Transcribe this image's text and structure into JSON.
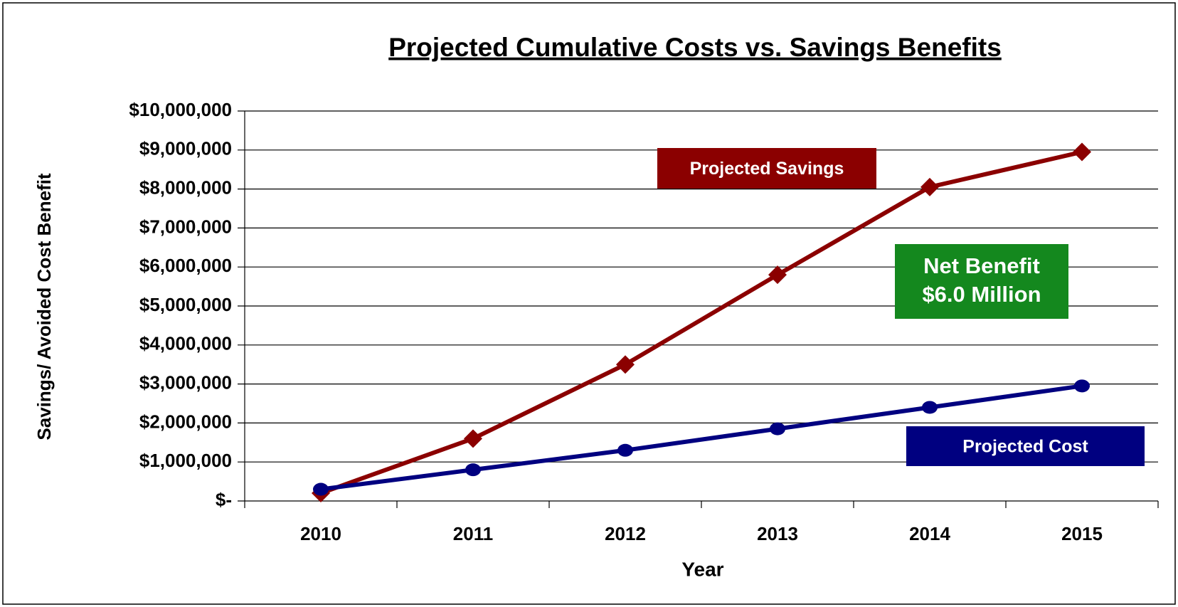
{
  "chart_data": {
    "type": "line",
    "title": "Projected Cumulative Costs vs. Savings Benefits",
    "x_label": "Year",
    "y_label": "Savings/ Avoided Cost Benefit",
    "categories": [
      "2010",
      "2011",
      "2012",
      "2013",
      "2014",
      "2015"
    ],
    "series": [
      {
        "name": "Projected Savings",
        "color": "#8b0000",
        "marker": "diamond",
        "values": [
          200000,
          1600000,
          3500000,
          5800000,
          8050000,
          8950000
        ]
      },
      {
        "name": "Projected Cost",
        "color": "#000080",
        "marker": "circle",
        "values": [
          300000,
          800000,
          1300000,
          1850000,
          2400000,
          2950000
        ]
      }
    ],
    "annotations": [
      {
        "lines": [
          "Net Benefit",
          "$6.0 Million"
        ],
        "color": "#14881e"
      }
    ],
    "ylim": [
      0,
      10000000
    ],
    "yticks": [
      {
        "value": 0,
        "label": "$-"
      },
      {
        "value": 1000000,
        "label": "$1,000,000"
      },
      {
        "value": 2000000,
        "label": "$2,000,000"
      },
      {
        "value": 3000000,
        "label": "$3,000,000"
      },
      {
        "value": 4000000,
        "label": "$4,000,000"
      },
      {
        "value": 5000000,
        "label": "$5,000,000"
      },
      {
        "value": 6000000,
        "label": "$6,000,000"
      },
      {
        "value": 7000000,
        "label": "$7,000,000"
      },
      {
        "value": 8000000,
        "label": "$8,000,000"
      },
      {
        "value": 9000000,
        "label": "$9,000,000"
      },
      {
        "value": 10000000,
        "label": "$10,000,000"
      }
    ],
    "grid": true
  }
}
